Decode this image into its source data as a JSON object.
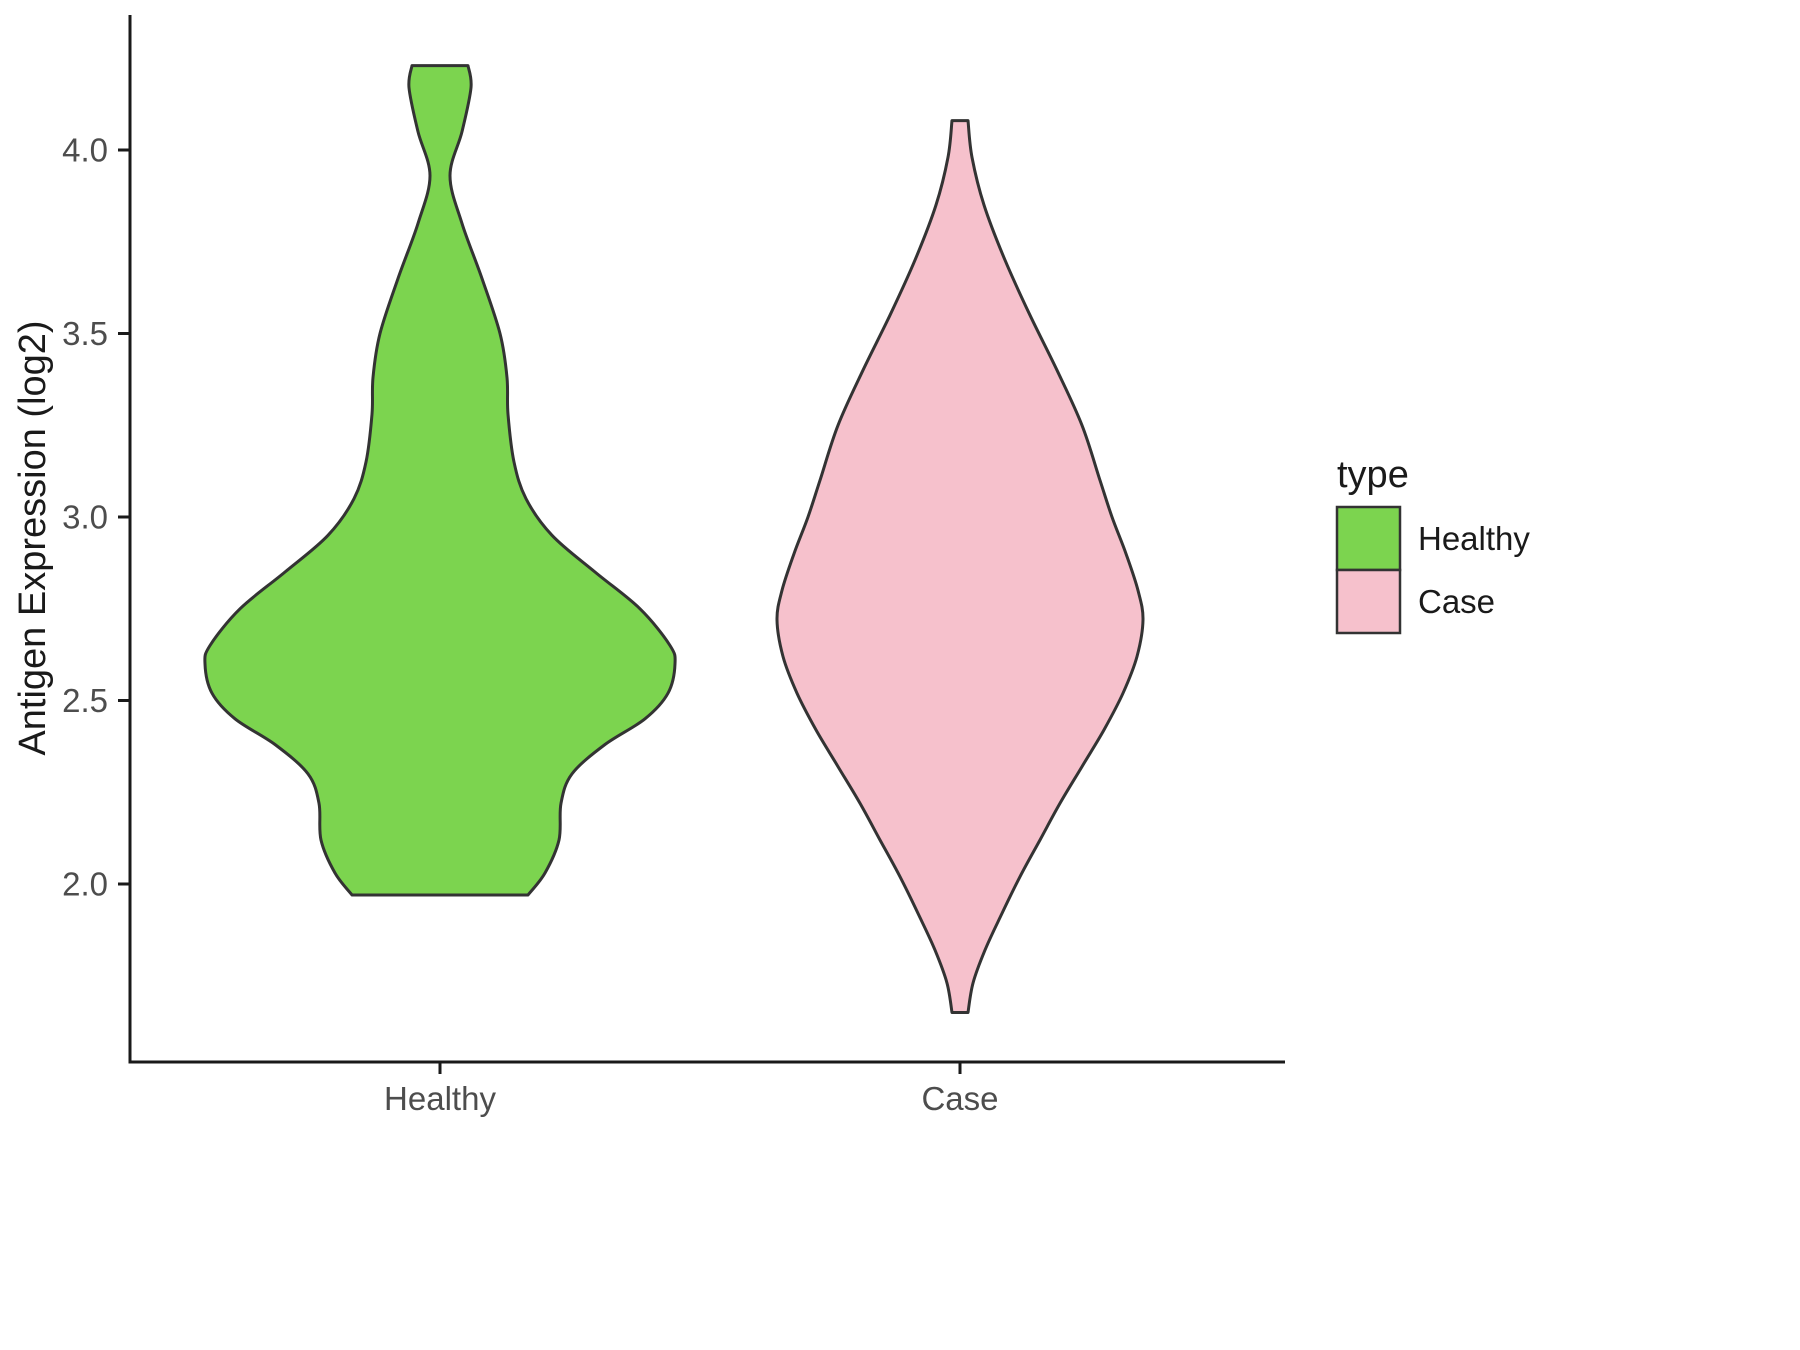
{
  "chart_data": {
    "type": "violin",
    "title": "",
    "xlabel": "",
    "ylabel": "Antigen Expression (log2)",
    "y_ticks": [
      {
        "value": 2.0,
        "label": "2.0"
      },
      {
        "value": 2.5,
        "label": "2.5"
      },
      {
        "value": 3.0,
        "label": "3.0"
      },
      {
        "value": 3.5,
        "label": "3.5"
      },
      {
        "value": 4.0,
        "label": "4.0"
      }
    ],
    "y_domain": [
      1.55,
      4.35
    ],
    "categories": [
      "Healthy",
      "Case"
    ],
    "grid": false,
    "legend": {
      "title": "type",
      "position": "right",
      "entries": [
        {
          "label": "Healthy",
          "fill": "#7CD44F"
        },
        {
          "label": "Case",
          "fill": "#F6C1CC"
        }
      ]
    },
    "colors": {
      "healthy_fill": "#7CD44F",
      "case_fill": "#F6C1CC",
      "outline": "#333333",
      "axis": "#1a1a1a",
      "tick_text": "#4d4d4d",
      "title_text": "#1a1a1a"
    },
    "violins": [
      {
        "name": "Healthy",
        "category": "Healthy",
        "fill": "#7CD44F",
        "value_min": 1.97,
        "value_max": 4.23,
        "widest_at": 2.6,
        "profile": [
          [
            4.23,
            28
          ],
          [
            4.17,
            31
          ],
          [
            4.05,
            22
          ],
          [
            3.93,
            10
          ],
          [
            3.8,
            22
          ],
          [
            3.65,
            42
          ],
          [
            3.5,
            60
          ],
          [
            3.38,
            67
          ],
          [
            3.28,
            68
          ],
          [
            3.15,
            74
          ],
          [
            3.05,
            86
          ],
          [
            2.95,
            112
          ],
          [
            2.85,
            155
          ],
          [
            2.75,
            200
          ],
          [
            2.65,
            230
          ],
          [
            2.6,
            235
          ],
          [
            2.52,
            228
          ],
          [
            2.45,
            205
          ],
          [
            2.38,
            165
          ],
          [
            2.3,
            132
          ],
          [
            2.22,
            121
          ],
          [
            2.12,
            119
          ],
          [
            2.03,
            105
          ],
          [
            1.97,
            88
          ]
        ]
      },
      {
        "name": "Case",
        "category": "Case",
        "fill": "#F6C1CC",
        "value_min": 1.65,
        "value_max": 4.08,
        "widest_at": 2.72,
        "profile": [
          [
            4.08,
            8
          ],
          [
            3.98,
            12
          ],
          [
            3.85,
            24
          ],
          [
            3.7,
            45
          ],
          [
            3.55,
            70
          ],
          [
            3.4,
            97
          ],
          [
            3.25,
            122
          ],
          [
            3.1,
            140
          ],
          [
            3.0,
            152
          ],
          [
            2.9,
            166
          ],
          [
            2.8,
            178
          ],
          [
            2.72,
            183
          ],
          [
            2.62,
            177
          ],
          [
            2.52,
            163
          ],
          [
            2.42,
            144
          ],
          [
            2.32,
            122
          ],
          [
            2.22,
            100
          ],
          [
            2.12,
            80
          ],
          [
            2.02,
            60
          ],
          [
            1.92,
            42
          ],
          [
            1.82,
            25
          ],
          [
            1.73,
            13
          ],
          [
            1.65,
            8
          ]
        ]
      }
    ]
  }
}
